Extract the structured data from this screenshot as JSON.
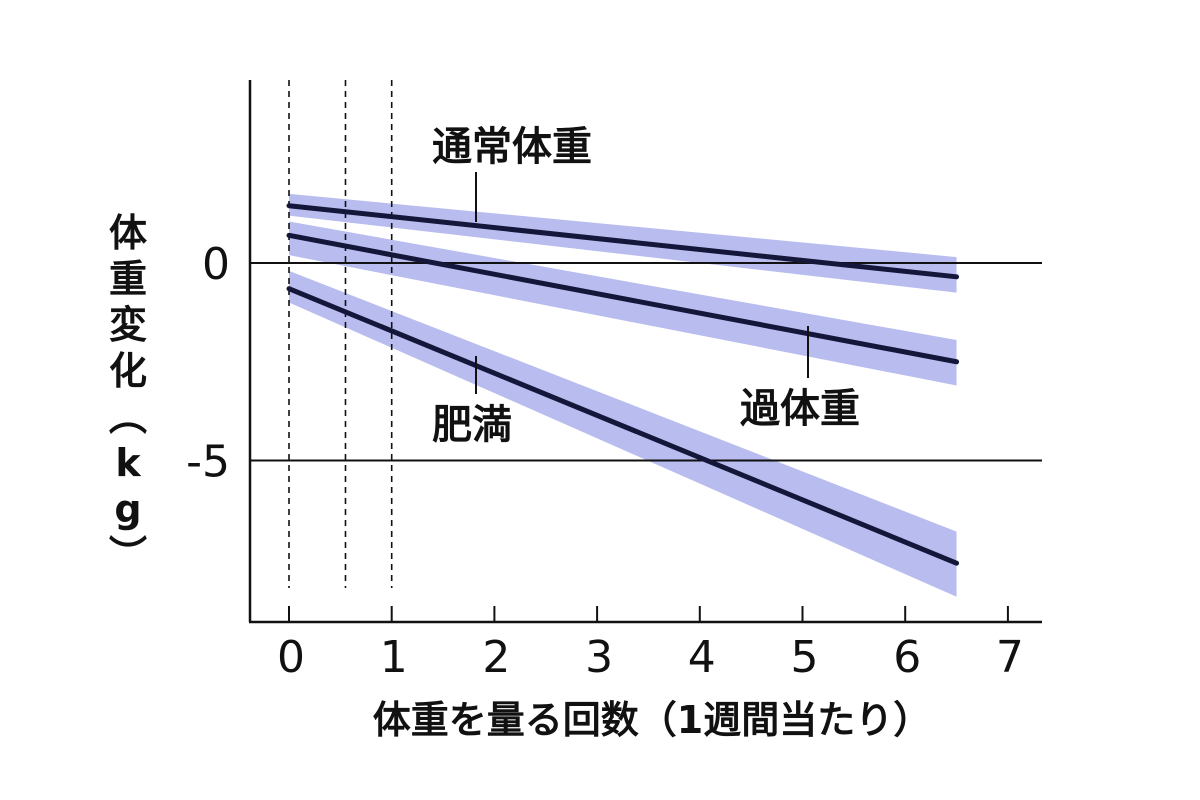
{
  "chart_data": {
    "type": "line",
    "xlabel": "体重を量る回数（1週間当たり）",
    "ylabel": "体重変化（kg）",
    "xlim": [
      0,
      7
    ],
    "ylim": [
      -9,
      4.5
    ],
    "xticks": [
      0,
      1,
      2,
      3,
      4,
      5,
      6,
      7
    ],
    "yticks": [
      0,
      -5
    ],
    "reference_lines_y": [
      0,
      -5
    ],
    "dashed_lines_x": [
      0,
      0.55,
      1
    ],
    "band_color": "#b8bcee",
    "line_color": "#14163a",
    "series": [
      {
        "name": "通常体重",
        "x": [
          0,
          6.5
        ],
        "y": [
          1.45,
          -0.35
        ],
        "band_lower": [
          1.2,
          -0.75
        ],
        "band_upper": [
          1.75,
          0.15
        ]
      },
      {
        "name": "過体重",
        "x": [
          0,
          6.5
        ],
        "y": [
          0.7,
          -2.5
        ],
        "band_lower": [
          0.2,
          -3.1
        ],
        "band_upper": [
          1.05,
          -1.95
        ]
      },
      {
        "name": "肥満",
        "x": [
          0,
          6.5
        ],
        "y": [
          -0.65,
          -7.6
        ],
        "band_lower": [
          -1.0,
          -8.45
        ],
        "band_upper": [
          -0.2,
          -6.8
        ]
      }
    ]
  }
}
